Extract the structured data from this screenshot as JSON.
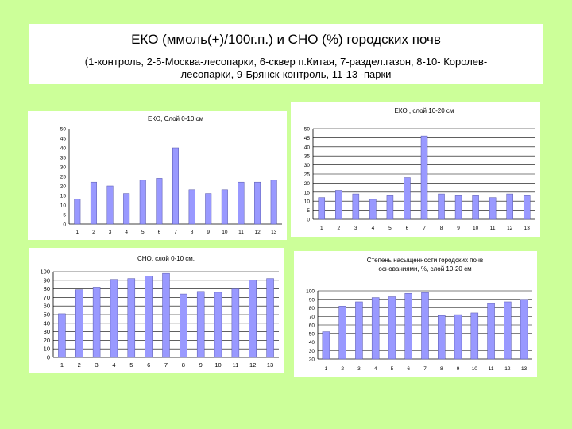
{
  "header": {
    "title": "ЕКО (ммоль(+)/100г.п.) и СНО (%) городских почв",
    "subtitle_line1": "(1-контроль, 2-5-Москва-лесопарки, 6-сквер п.Китая, 7-раздел.газон, 8-10- Королев-",
    "subtitle_line2": "лесопарки, 9-Брянск-контроль, 11-13 -парки"
  },
  "colors": {
    "background": "#ccff99",
    "bar": "#9999ff",
    "bar_stroke": "#5555aa"
  },
  "chart_data": [
    {
      "type": "bar",
      "title": "ЕКО, Слой 0-10 см",
      "categories": [
        "1",
        "2",
        "3",
        "4",
        "5",
        "6",
        "7",
        "8",
        "9",
        "10",
        "11",
        "12",
        "13"
      ],
      "values": [
        13,
        22,
        20,
        16,
        23,
        24,
        40,
        18,
        16,
        18,
        22,
        22,
        23
      ],
      "ylim": [
        0,
        50
      ],
      "yticks": [
        0,
        5,
        10,
        15,
        20,
        25,
        30,
        35,
        40,
        45,
        50
      ],
      "grid": false
    },
    {
      "type": "bar",
      "title": "ЕКО , слой 10-20 см",
      "categories": [
        "1",
        "2",
        "3",
        "4",
        "5",
        "6",
        "7",
        "8",
        "9",
        "10",
        "11",
        "12",
        "13"
      ],
      "values": [
        12,
        16,
        14,
        11,
        13,
        23,
        46,
        14,
        13,
        13,
        12,
        14,
        13
      ],
      "ylim": [
        0,
        50
      ],
      "yticks": [
        0,
        5,
        10,
        15,
        20,
        25,
        30,
        35,
        40,
        45,
        50
      ],
      "grid": true
    },
    {
      "type": "bar",
      "title": "СНО, слой 0-10 см,",
      "categories": [
        "1",
        "2",
        "3",
        "4",
        "5",
        "6",
        "7",
        "8",
        "9",
        "10",
        "11",
        "12",
        "13"
      ],
      "values": [
        51,
        79,
        82,
        91,
        92,
        95,
        98,
        74,
        77,
        76,
        80,
        90,
        92
      ],
      "ylim": [
        0,
        100
      ],
      "yticks": [
        0,
        10,
        20,
        30,
        40,
        50,
        60,
        70,
        80,
        90,
        100
      ],
      "grid": true
    },
    {
      "type": "bar",
      "title": "Степень насыщенности городских почв основаниями, %, слой 10-20 см",
      "title_lines": [
        "Степень насыщенности городских почв",
        "основаниями, %, слой 10-20 см"
      ],
      "categories": [
        "1",
        "2",
        "3",
        "4",
        "5",
        "6",
        "7",
        "8",
        "9",
        "10",
        "11",
        "12",
        "13"
      ],
      "values": [
        52,
        82,
        87,
        92,
        93,
        97,
        98,
        71,
        72,
        74,
        85,
        87,
        90
      ],
      "ylim": [
        20,
        100
      ],
      "yticks": [
        20,
        30,
        40,
        50,
        60,
        70,
        80,
        90,
        100
      ],
      "grid": true
    }
  ]
}
